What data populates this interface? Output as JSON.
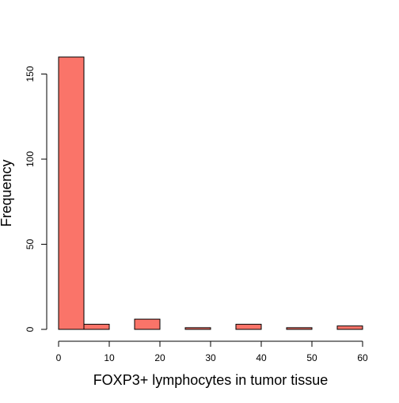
{
  "chart_data": {
    "type": "bar",
    "xlabel": "FOXP3+ lymphocytes in tumor tissue",
    "ylabel": "Frequency",
    "bins": [
      {
        "start": 0,
        "end": 5,
        "count": 160
      },
      {
        "start": 5,
        "end": 10,
        "count": 3
      },
      {
        "start": 10,
        "end": 15,
        "count": 0
      },
      {
        "start": 15,
        "end": 20,
        "count": 6
      },
      {
        "start": 20,
        "end": 25,
        "count": 0
      },
      {
        "start": 25,
        "end": 30,
        "count": 1
      },
      {
        "start": 30,
        "end": 35,
        "count": 0
      },
      {
        "start": 35,
        "end": 40,
        "count": 3
      },
      {
        "start": 40,
        "end": 45,
        "count": 0
      },
      {
        "start": 45,
        "end": 50,
        "count": 1
      },
      {
        "start": 50,
        "end": 55,
        "count": 0
      },
      {
        "start": 55,
        "end": 60,
        "count": 2
      }
    ],
    "x_ticks": [
      0,
      10,
      20,
      30,
      40,
      50,
      60
    ],
    "y_ticks": [
      0,
      50,
      100,
      150
    ],
    "xlim": [
      0,
      60
    ],
    "ylim": [
      0,
      160
    ],
    "grid": false,
    "bar_color": "#fa7469",
    "bar_border_color": "#000000"
  }
}
